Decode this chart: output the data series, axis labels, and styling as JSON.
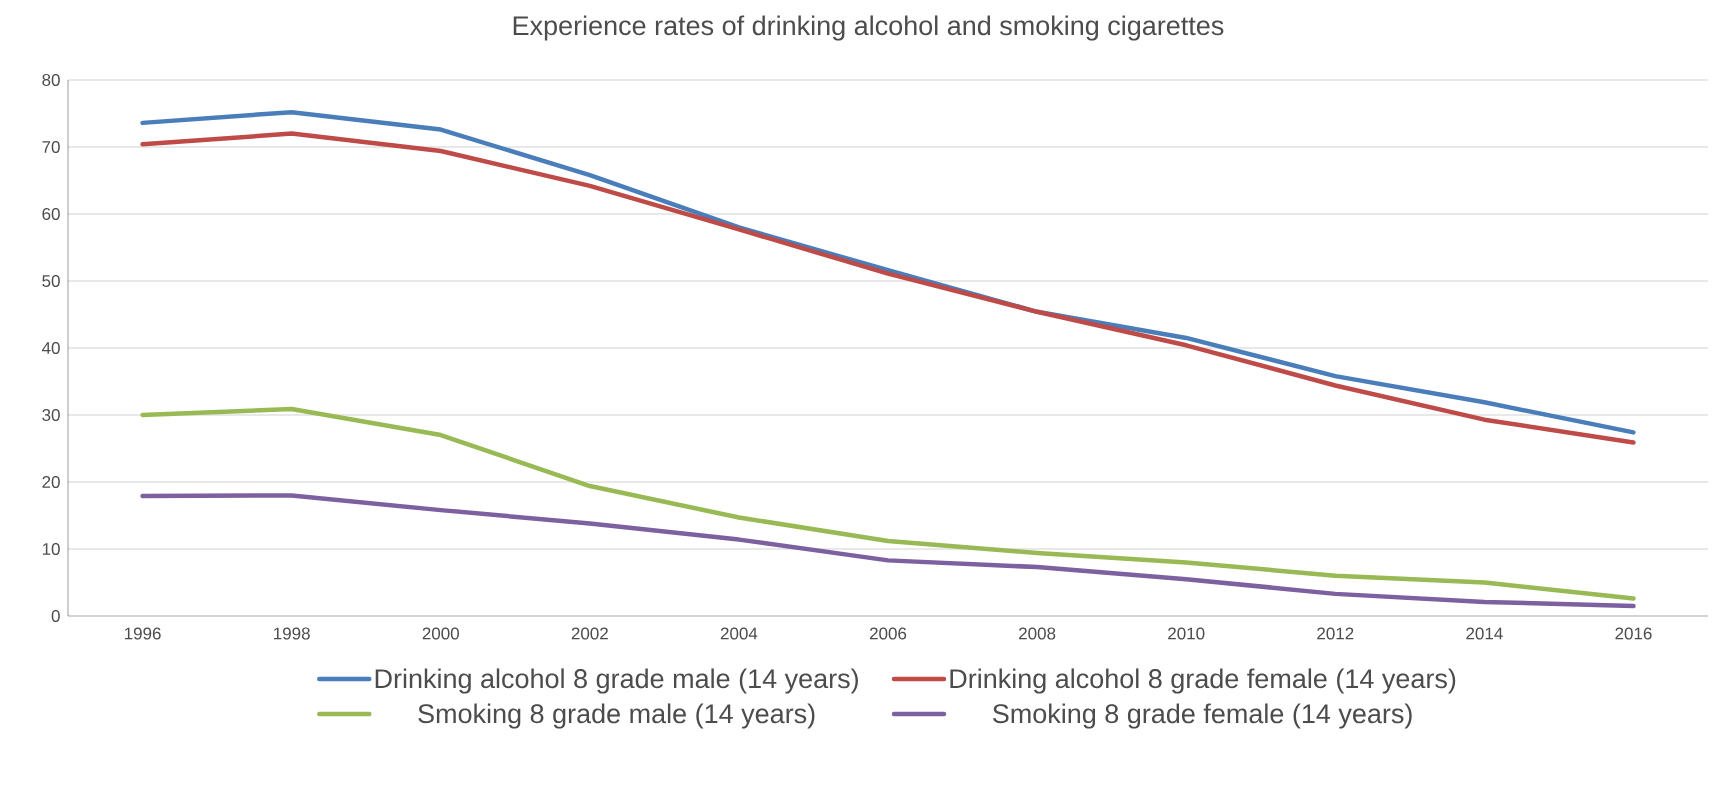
{
  "chart_data": {
    "type": "line",
    "title": "Experience rates of drinking alcohol and smoking cigarettes",
    "categories": [
      "1996",
      "1998",
      "2000",
      "2002",
      "2004",
      "2006",
      "2008",
      "2010",
      "2012",
      "2014",
      "2016"
    ],
    "series": [
      {
        "name": "Drinking alcohol 8 grade male (14 years)",
        "color": "#4a7ebb",
        "values": [
          73.6,
          75.2,
          72.6,
          65.8,
          58,
          51.6,
          45.4,
          41.5,
          35.8,
          31.9,
          27.4
        ]
      },
      {
        "name": "Drinking alcohol 8 grade female (14 years)",
        "color": "#be4b48",
        "values": [
          70.4,
          72,
          69.4,
          64.2,
          57.7,
          51.1,
          45.4,
          40.4,
          34.4,
          29.3,
          25.9
        ]
      },
      {
        "name": "Smoking 8 grade male (14 years)",
        "color": "#98b954",
        "values": [
          30,
          30.9,
          27,
          19.4,
          14.7,
          11.2,
          9.4,
          8,
          6,
          5,
          2.6
        ]
      },
      {
        "name": "Smoking 8 grade female (14 years)",
        "color": "#7d60a0",
        "values": [
          17.9,
          18,
          15.8,
          13.8,
          11.4,
          8.3,
          7.3,
          5.5,
          3.3,
          2.1,
          1.5
        ]
      }
    ],
    "ylim": [
      0,
      80
    ],
    "yticks": [
      0,
      10,
      20,
      30,
      40,
      50,
      60,
      70,
      80
    ],
    "grid": "y",
    "legend": "bottom",
    "marker": "none",
    "line_style": "solid"
  }
}
